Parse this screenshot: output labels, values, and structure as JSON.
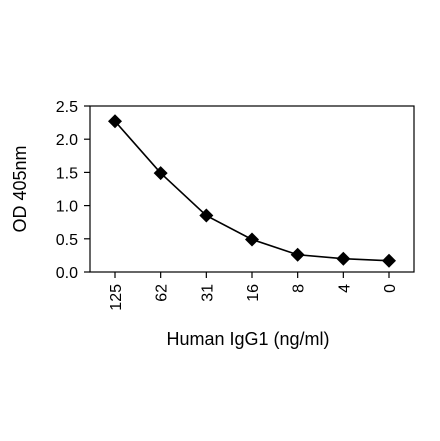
{
  "chart_data": {
    "type": "line",
    "title": "",
    "xlabel": "Human IgG1 (ng/ml)",
    "ylabel": "OD 405nm",
    "categories": [
      "125",
      "62",
      "31",
      "16",
      "8",
      "4",
      "0"
    ],
    "series": [
      {
        "values": [
          2.27,
          1.49,
          0.85,
          0.49,
          0.26,
          0.2,
          0.17
        ]
      }
    ],
    "ylim": [
      0,
      2.5
    ],
    "yticks": [
      "0.0",
      "0.5",
      "1.0",
      "1.5",
      "2.0",
      "2.5"
    ],
    "marker": "diamond",
    "grid": false,
    "legend": "none",
    "colors": {
      "line": "#000000",
      "marker": "#000000",
      "axis": "#000000"
    }
  }
}
